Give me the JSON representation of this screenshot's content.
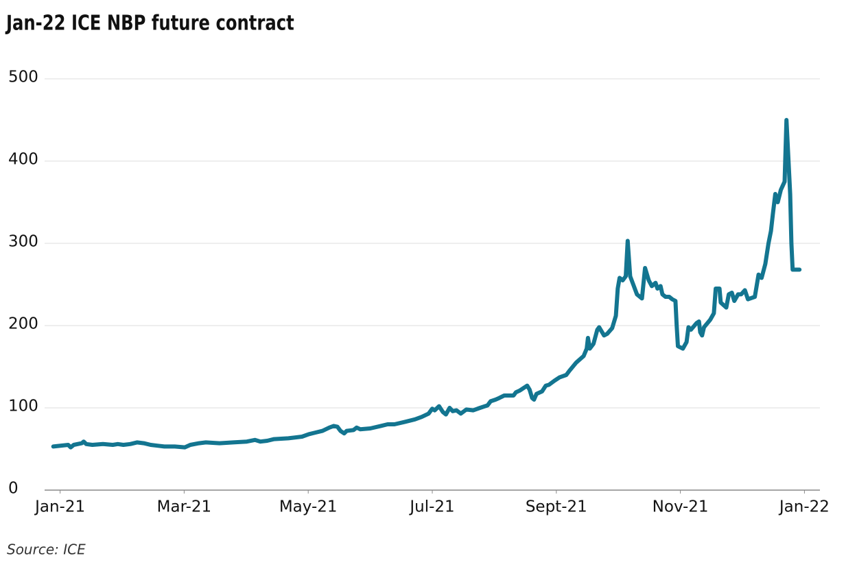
{
  "chart_data": {
    "type": "line",
    "title": "Jan-22 ICE NBP future contract",
    "source": "Source: ICE",
    "color": "#137590",
    "xlim": [
      -0.25,
      12.25
    ],
    "xticks": [
      {
        "value": 0,
        "label": "Jan-21"
      },
      {
        "value": 2,
        "label": "Mar-21"
      },
      {
        "value": 4,
        "label": "May-21"
      },
      {
        "value": 6,
        "label": "Jul-21"
      },
      {
        "value": 8,
        "label": "Sept-21"
      },
      {
        "value": 10,
        "label": "Nov-21"
      },
      {
        "value": 12,
        "label": "Jan-22"
      }
    ],
    "ylim": [
      0,
      500
    ],
    "yticks": [
      0,
      100,
      200,
      300,
      400,
      500
    ],
    "grid": true,
    "x": [
      -0.11,
      0.13,
      0.17,
      0.22,
      0.35,
      0.38,
      0.42,
      0.52,
      0.69,
      0.85,
      0.93,
      1.02,
      1.13,
      1.24,
      1.35,
      1.46,
      1.57,
      1.68,
      1.85,
      2.01,
      2.1,
      2.24,
      2.35,
      2.57,
      2.79,
      3.01,
      3.14,
      3.23,
      3.34,
      3.45,
      3.68,
      3.9,
      4.01,
      4.12,
      4.23,
      4.34,
      4.41,
      4.47,
      4.52,
      4.58,
      4.62,
      4.73,
      4.78,
      4.84,
      5.0,
      5.17,
      5.28,
      5.39,
      5.56,
      5.72,
      5.83,
      5.94,
      6.0,
      6.04,
      6.11,
      6.17,
      6.22,
      6.28,
      6.33,
      6.39,
      6.46,
      6.55,
      6.66,
      6.77,
      6.89,
      6.94,
      7.02,
      7.08,
      7.16,
      7.31,
      7.35,
      7.41,
      7.49,
      7.53,
      7.57,
      7.61,
      7.64,
      7.68,
      7.77,
      7.83,
      7.88,
      7.97,
      8.05,
      8.16,
      8.21,
      8.32,
      8.44,
      8.49,
      8.51,
      8.54,
      8.6,
      8.66,
      8.69,
      8.77,
      8.82,
      8.9,
      8.96,
      8.99,
      9.02,
      9.07,
      9.12,
      9.15,
      9.19,
      9.24,
      9.3,
      9.38,
      9.43,
      9.49,
      9.54,
      9.6,
      9.63,
      9.68,
      9.71,
      9.76,
      9.82,
      9.87,
      9.92,
      9.94,
      9.96,
      10.04,
      10.1,
      10.13,
      10.17,
      10.26,
      10.3,
      10.32,
      10.35,
      10.38,
      10.48,
      10.54,
      10.57,
      10.63,
      10.65,
      10.74,
      10.78,
      10.83,
      10.87,
      10.93,
      10.98,
      11.04,
      11.09,
      11.2,
      11.26,
      11.31,
      11.37,
      11.42,
      11.46,
      11.49,
      11.53,
      11.57,
      11.62,
      11.68,
      11.71,
      11.73,
      11.77,
      11.79,
      11.81,
      11.92
    ],
    "values": [
      53,
      55,
      52,
      55,
      57,
      59,
      56,
      55,
      56,
      55,
      56,
      55,
      56,
      58,
      57,
      55,
      54,
      53,
      53,
      52,
      55,
      57,
      58,
      57,
      58,
      59,
      61,
      59,
      60,
      62,
      63,
      65,
      68,
      70,
      72,
      76,
      78,
      77,
      72,
      69,
      72,
      73,
      76,
      74,
      75,
      78,
      80,
      80,
      83,
      86,
      89,
      93,
      99,
      97,
      102,
      95,
      92,
      100,
      96,
      97,
      93,
      98,
      97,
      100,
      103,
      108,
      110,
      112,
      115,
      115,
      119,
      121,
      125,
      127,
      122,
      112,
      110,
      117,
      120,
      127,
      128,
      133,
      137,
      140,
      145,
      155,
      163,
      172,
      185,
      172,
      178,
      195,
      198,
      188,
      190,
      197,
      212,
      245,
      258,
      255,
      260,
      303,
      260,
      250,
      238,
      233,
      270,
      255,
      248,
      252,
      245,
      248,
      238,
      235,
      235,
      232,
      230,
      200,
      175,
      172,
      180,
      198,
      195,
      203,
      205,
      192,
      188,
      198,
      207,
      215,
      245,
      245,
      228,
      222,
      238,
      240,
      230,
      238,
      238,
      243,
      232,
      235,
      262,
      258,
      275,
      300,
      315,
      335,
      360,
      350,
      365,
      375,
      450,
      420,
      360,
      300,
      268,
      268
    ]
  }
}
